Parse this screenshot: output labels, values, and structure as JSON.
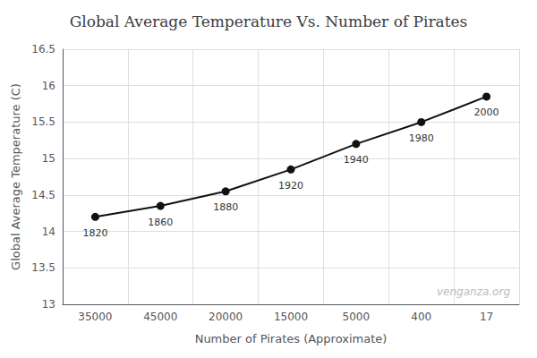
{
  "chart_data": {
    "type": "line",
    "title": "Global Average Temperature Vs. Number of Pirates",
    "xlabel": "Number of Pirates (Approximate)",
    "ylabel": "Global Average Temperature (C)",
    "categories": [
      "35000",
      "45000",
      "20000",
      "15000",
      "5000",
      "400",
      "17"
    ],
    "values": [
      14.2,
      14.35,
      14.55,
      14.85,
      15.2,
      15.5,
      15.85
    ],
    "color": "#111111",
    "marker": "circle",
    "ylim": [
      13.0,
      16.5
    ],
    "yticks": [
      13.0,
      13.5,
      14.0,
      14.5,
      15.0,
      15.5,
      16.0,
      16.5
    ],
    "grid": true,
    "annotations": [
      {
        "text": "1820",
        "x": "35000",
        "y": 14.2
      },
      {
        "text": "1860",
        "x": "45000",
        "y": 14.35
      },
      {
        "text": "1880",
        "x": "20000",
        "y": 14.55
      },
      {
        "text": "1920",
        "x": "15000",
        "y": 14.85
      },
      {
        "text": "1940",
        "x": "5000",
        "y": 15.2
      },
      {
        "text": "1980",
        "x": "400",
        "y": 15.5
      },
      {
        "text": "2000",
        "x": "17",
        "y": 15.85
      },
      {
        "text": "venganza.org",
        "color": "#bbbbbb"
      }
    ]
  }
}
